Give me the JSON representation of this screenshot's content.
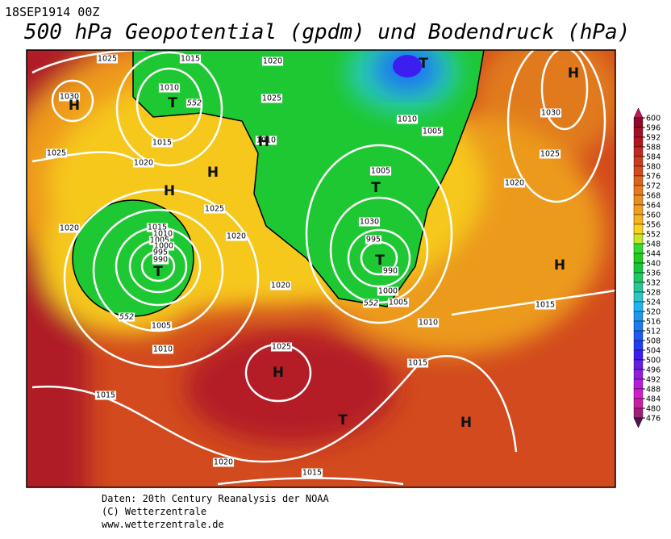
{
  "header": {
    "run": "18SEP1914 00Z",
    "title": "500 hPa Geopotential (gpdm) und Bodendruck (hPa)"
  },
  "map": {
    "pressure_labels": [
      "1025",
      "1015",
      "1020",
      "1030",
      "1010",
      "552",
      "1025",
      "1010",
      "1015",
      "1025",
      "1020",
      "1025",
      "1020",
      "1015",
      "1010",
      "1005",
      "1000",
      "995",
      "990",
      "1020",
      "552",
      "1005",
      "1010",
      "1020",
      "1010",
      "1005",
      "1005",
      "1030",
      "995",
      "990",
      "1000",
      "552",
      "1005",
      "1010",
      "1015",
      "1025",
      "1015",
      "1020",
      "1015",
      "1030",
      "1025",
      "1020",
      "1015"
    ],
    "systems": [
      "T",
      "H",
      "H",
      "T",
      "H",
      "H",
      "H",
      "T",
      "T",
      "T",
      "H",
      "H",
      "T",
      "H"
    ]
  },
  "colorbar": {
    "levels": [
      600,
      596,
      592,
      588,
      584,
      580,
      576,
      572,
      568,
      564,
      560,
      556,
      552,
      548,
      544,
      540,
      536,
      532,
      528,
      524,
      520,
      516,
      512,
      508,
      504,
      500,
      496,
      492,
      488,
      484,
      480,
      476
    ]
  },
  "footer": {
    "source": "Daten: 20th Century Reanalysis der NOAA",
    "copyright": "(C) Wetterzentrale",
    "url": "www.wetterzentrale.de"
  }
}
